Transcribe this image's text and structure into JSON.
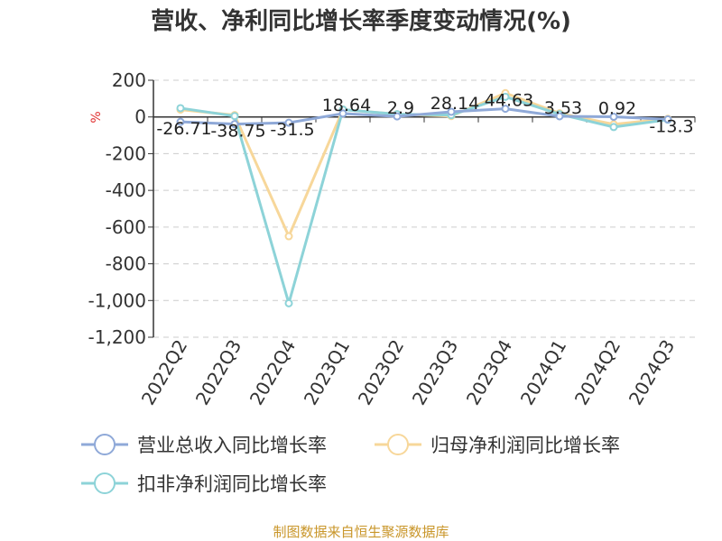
{
  "chart_data": {
    "type": "line",
    "title": "营收、净利同比增长率季度变动情况(%)",
    "y_unit": "%",
    "categories": [
      "2022Q2",
      "2022Q3",
      "2022Q4",
      "2023Q1",
      "2023Q2",
      "2023Q3",
      "2023Q4",
      "2024Q1",
      "2024Q2",
      "2024Q3"
    ],
    "y_ticks": [
      "200",
      "0",
      "-200",
      "-400",
      "-600",
      "-800",
      "-1,000",
      "-1,200"
    ],
    "ylim": [
      -1200,
      200
    ],
    "grid": true,
    "legend_position": "bottom",
    "series": [
      {
        "name": "营业总收入同比增长率",
        "color": "#8fa9d8",
        "values": [
          -26.71,
          -38.75,
          -31.5,
          18.64,
          2.9,
          28.14,
          44.63,
          3.53,
          0.92,
          -13.3
        ],
        "labels": [
          "-26.71",
          "-38.75",
          "-31.5",
          "18.64",
          "2.9",
          "28.14",
          "44.63",
          "3.53",
          "0.92",
          "-13.3"
        ]
      },
      {
        "name": "归母净利润同比增长率",
        "color": "#f7d79a",
        "values": [
          40,
          10,
          -650,
          40,
          15,
          5,
          130,
          20,
          -40,
          -10
        ],
        "labels": []
      },
      {
        "name": "扣非净利润同比增长率",
        "color": "#8dd3d8",
        "values": [
          48,
          5,
          -1015,
          40,
          15,
          10,
          110,
          15,
          -55,
          -15
        ],
        "labels": []
      }
    ],
    "source": "制图数据来自恒生聚源数据库"
  }
}
